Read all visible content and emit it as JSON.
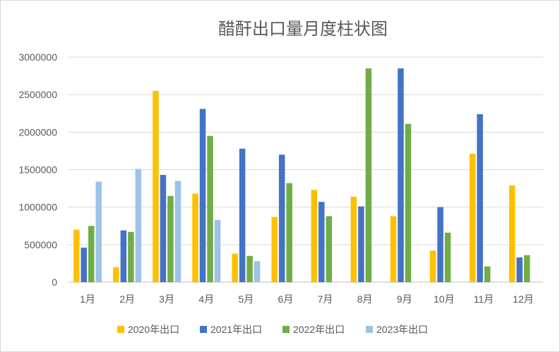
{
  "chart_data": {
    "type": "bar",
    "title": "醋酐出口量月度柱状图",
    "xlabel": "",
    "ylabel": "",
    "ylim": [
      0,
      3000000
    ],
    "yticks": [
      "0",
      "500000",
      "1000000",
      "1500000",
      "2000000",
      "2500000",
      "3000000"
    ],
    "grid": true,
    "legend_position": "bottom",
    "categories": [
      "1月",
      "2月",
      "3月",
      "4月",
      "5月",
      "6月",
      "7月",
      "8月",
      "9月",
      "10月",
      "11月",
      "12月"
    ],
    "series": [
      {
        "name": "2020年出口",
        "color": "#ffc000",
        "values": [
          700000,
          200000,
          2550000,
          1180000,
          380000,
          870000,
          1230000,
          1140000,
          880000,
          420000,
          1710000,
          1290000
        ]
      },
      {
        "name": "2021年出口",
        "color": "#4472c4",
        "values": [
          460000,
          690000,
          1430000,
          2310000,
          1780000,
          1700000,
          1070000,
          1010000,
          2850000,
          1000000,
          2240000,
          330000
        ]
      },
      {
        "name": "2022年出口",
        "color": "#70ad47",
        "values": [
          750000,
          670000,
          1150000,
          1950000,
          350000,
          1320000,
          880000,
          2850000,
          2110000,
          660000,
          210000,
          360000
        ]
      },
      {
        "name": "2023年出口",
        "color": "#9dc3e6",
        "values": [
          1340000,
          1510000,
          1350000,
          830000,
          280000,
          null,
          null,
          null,
          null,
          null,
          null,
          null
        ]
      }
    ]
  }
}
